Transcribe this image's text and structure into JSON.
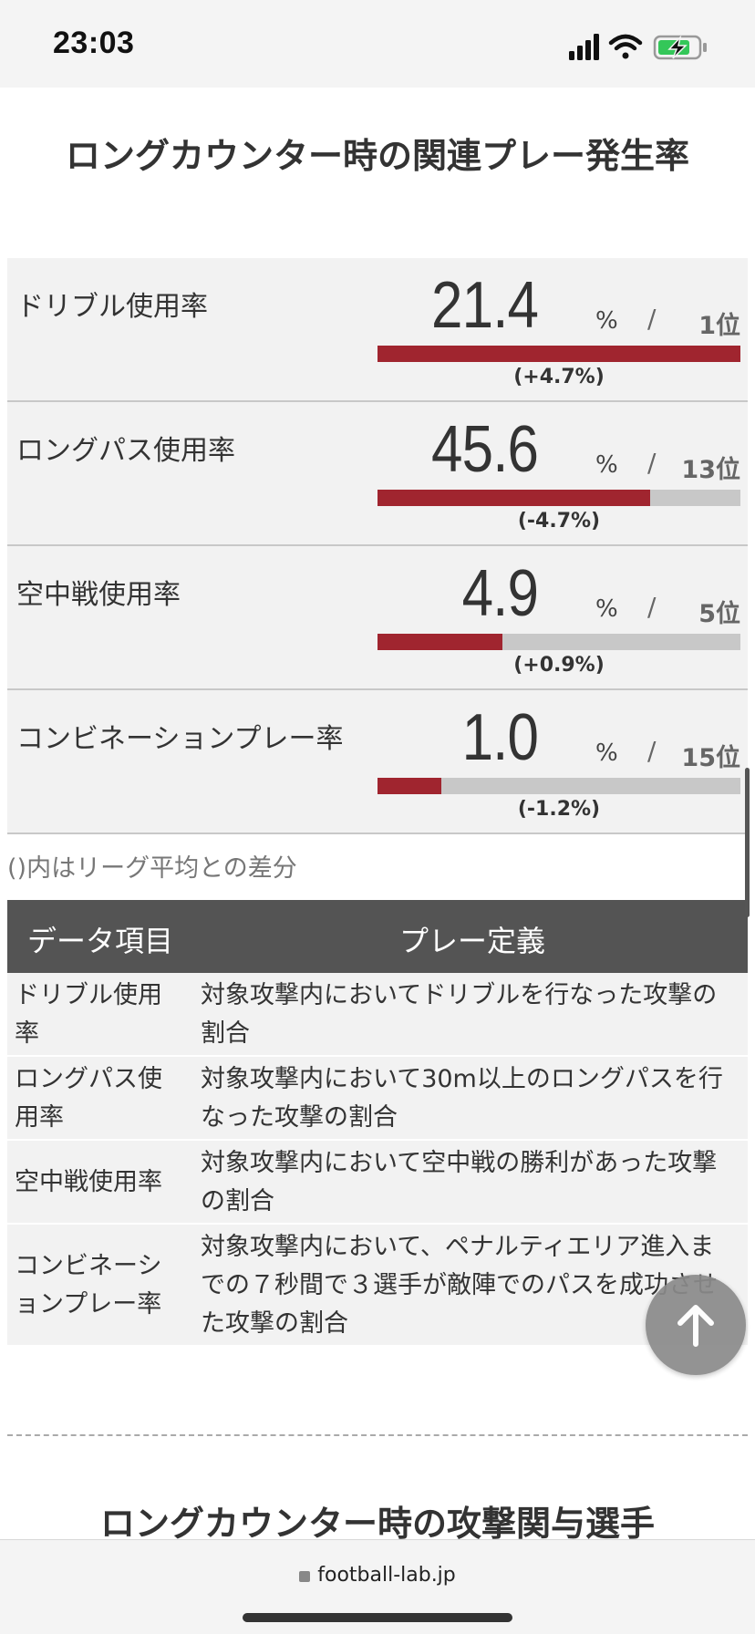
{
  "status_bar": {
    "time": "23:03"
  },
  "section1": {
    "title": "ロングカウンター時の関連プレー発生率"
  },
  "stats": [
    {
      "label": "ドリブル使用率",
      "value": "21.4",
      "unit": "%",
      "separator": "/",
      "rank": "1位",
      "diff": "(+4.7%)",
      "bar_fraction": 1.0
    },
    {
      "label": "ロングパス使用率",
      "value": "45.6",
      "unit": "%",
      "separator": "/",
      "rank": "13位",
      "diff": "(-4.7%)",
      "bar_fraction": 0.75
    },
    {
      "label": "空中戦使用率",
      "value": "4.9",
      "unit": "%",
      "separator": "/",
      "rank": "5位",
      "diff": "(+0.9%)",
      "bar_fraction": 0.345
    },
    {
      "label": "コンビネーションプレー率",
      "value": "1.0",
      "unit": "%",
      "separator": "/",
      "rank": "15位",
      "diff": "(-1.2%)",
      "bar_fraction": 0.175
    }
  ],
  "note": "()内はリーグ平均との差分",
  "definitions": {
    "headers": [
      "データ項目",
      "プレー定義"
    ],
    "rows": [
      {
        "term_lines": [
          "ドリブル使用",
          "率"
        ],
        "desc_lines": [
          "対象攻撃内においてドリブルを行なった攻撃の",
          "割合"
        ]
      },
      {
        "term_lines": [
          "ロングパス使",
          "用率"
        ],
        "desc_lines": [
          "対象攻撃内において30m以上のロングパスを行",
          "なった攻撃の割合"
        ]
      },
      {
        "term_lines": [
          "空中戦使用率"
        ],
        "desc_lines": [
          "対象攻撃内において空中戦の勝利があった攻撃",
          "の割合"
        ]
      },
      {
        "term_lines": [
          "コンビネーシ",
          "ョンプレー率"
        ],
        "desc_lines": [
          "対象攻撃内において、ペナルティエリア進入ま",
          "での７秒間で３選手が敵陣でのパスを成功させ",
          "た攻撃の割合"
        ]
      }
    ]
  },
  "section2": {
    "title": "ロングカウンター時の攻撃関与選手"
  },
  "browser": {
    "url": "football-lab.jp"
  },
  "colors": {
    "bar_fill": "#a0252f",
    "bar_track": "#c8c8c8",
    "table_header": "#545454"
  },
  "icons": {
    "back_to_top": "arrow-up-icon",
    "lock": "lock-icon"
  }
}
